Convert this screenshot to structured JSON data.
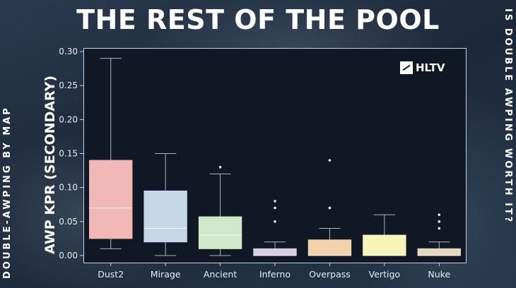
{
  "title": "THE REST OF THE POOL",
  "side_left": "DOUBLE-AWPING BY MAP",
  "side_right": "IS DOUBLE AWPING WORTH IT?",
  "logo_text": "HLTV",
  "chart_data": {
    "type": "box",
    "ylabel": "AWP KPR (SECONDARY)",
    "ylim": [
      0,
      0.3
    ],
    "yticks": [
      "0.00",
      "0.05",
      "0.10",
      "0.15",
      "0.20",
      "0.25",
      "0.30"
    ],
    "grid": false,
    "categories": [
      "Dust2",
      "Mirage",
      "Ancient",
      "Inferno",
      "Overpass",
      "Vertigo",
      "Nuke"
    ],
    "boxes": [
      {
        "name": "Dust2",
        "min": 0.01,
        "q1": 0.025,
        "median": 0.07,
        "q3": 0.14,
        "max": 0.29,
        "outliers": [],
        "color": "#f2b8b8"
      },
      {
        "name": "Mirage",
        "min": 0.0,
        "q1": 0.02,
        "median": 0.04,
        "q3": 0.095,
        "max": 0.15,
        "outliers": [],
        "color": "#c5d7e8"
      },
      {
        "name": "Ancient",
        "min": 0.0,
        "q1": 0.01,
        "median": 0.03,
        "q3": 0.057,
        "max": 0.12,
        "outliers": [
          0.13
        ],
        "color": "#cfe8c8"
      },
      {
        "name": "Inferno",
        "min": 0.0,
        "q1": 0.0,
        "median": 0.0,
        "q3": 0.01,
        "max": 0.02,
        "outliers": [
          0.05,
          0.07,
          0.08
        ],
        "color": "#d9cde8"
      },
      {
        "name": "Overpass",
        "min": 0.0,
        "q1": 0.0,
        "median": 0.0,
        "q3": 0.023,
        "max": 0.04,
        "outliers": [
          0.07,
          0.14
        ],
        "color": "#f4d2ab"
      },
      {
        "name": "Vertigo",
        "min": 0.0,
        "q1": 0.0,
        "median": 0.0,
        "q3": 0.03,
        "max": 0.06,
        "outliers": [],
        "color": "#f8f4b8"
      },
      {
        "name": "Nuke",
        "min": 0.0,
        "q1": 0.0,
        "median": 0.0,
        "q3": 0.01,
        "max": 0.02,
        "outliers": [
          0.04,
          0.05,
          0.06
        ],
        "color": "#e6d7bf"
      }
    ]
  }
}
